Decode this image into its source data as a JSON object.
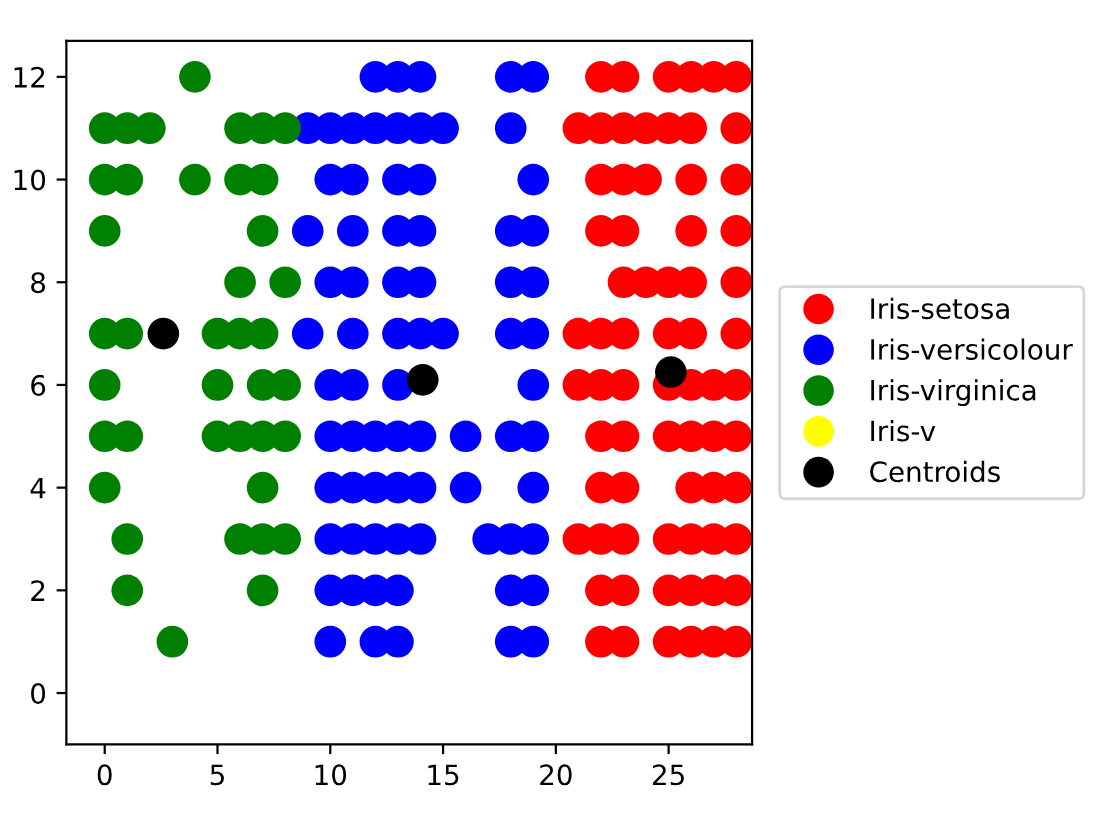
{
  "chart_data": {
    "type": "scatter",
    "xlim": [
      -1.7,
      28.7
    ],
    "ylim": [
      -1,
      12.7
    ],
    "xticks": [
      0,
      5,
      10,
      15,
      20,
      25
    ],
    "yticks": [
      0,
      2,
      4,
      6,
      8,
      10,
      12
    ],
    "grid": false,
    "legend": "right",
    "marker": "circle",
    "series": [
      {
        "name": "Iris-setosa",
        "color": "#ff0000",
        "x": [
          22,
          23,
          25,
          26,
          27,
          28,
          21,
          22,
          23,
          24,
          25,
          26,
          28,
          22,
          23,
          24,
          26,
          28,
          22,
          23,
          26,
          28,
          23,
          24,
          25,
          26,
          28,
          21,
          22,
          23,
          25,
          26,
          28,
          21,
          22,
          23,
          25,
          26,
          27,
          28,
          22,
          23,
          25,
          26,
          27,
          28,
          22,
          23,
          26,
          27,
          28,
          21,
          22,
          23,
          25,
          26,
          27,
          28,
          22,
          23,
          25,
          26,
          27,
          28,
          22,
          23,
          25,
          26,
          27,
          28
        ],
        "values": [
          12,
          12,
          12,
          12,
          12,
          12,
          11,
          11,
          11,
          11,
          11,
          11,
          11,
          10,
          10,
          10,
          10,
          10,
          9,
          9,
          9,
          9,
          8,
          8,
          8,
          8,
          8,
          7,
          7,
          7,
          7,
          7,
          7,
          6,
          6,
          6,
          6,
          6,
          6,
          6,
          5,
          5,
          5,
          5,
          5,
          5,
          4,
          4,
          4,
          4,
          4,
          3,
          3,
          3,
          3,
          3,
          3,
          3,
          2,
          2,
          2,
          2,
          2,
          2,
          1,
          1,
          1,
          1,
          1,
          1
        ]
      },
      {
        "name": "Iris-versicolour",
        "color": "#0000ff",
        "x": [
          12,
          13,
          14,
          18,
          19,
          9,
          10,
          11,
          12,
          13,
          14,
          15,
          18,
          10,
          11,
          13,
          14,
          19,
          9,
          11,
          13,
          14,
          18,
          19,
          10,
          11,
          13,
          14,
          18,
          19,
          9,
          11,
          13,
          14,
          15,
          18,
          19,
          10,
          11,
          13,
          19,
          10,
          11,
          12,
          13,
          14,
          16,
          18,
          19,
          10,
          11,
          12,
          13,
          14,
          16,
          19,
          10,
          11,
          12,
          13,
          14,
          17,
          18,
          19,
          10,
          11,
          12,
          13,
          18,
          19,
          10,
          12,
          13,
          18,
          19
        ],
        "values": [
          12,
          12,
          12,
          12,
          12,
          11,
          11,
          11,
          11,
          11,
          11,
          11,
          11,
          10,
          10,
          10,
          10,
          10,
          9,
          9,
          9,
          9,
          9,
          9,
          8,
          8,
          8,
          8,
          8,
          8,
          7,
          7,
          7,
          7,
          7,
          7,
          7,
          6,
          6,
          6,
          6,
          5,
          5,
          5,
          5,
          5,
          5,
          5,
          5,
          4,
          4,
          4,
          4,
          4,
          4,
          4,
          3,
          3,
          3,
          3,
          3,
          3,
          3,
          3,
          2,
          2,
          2,
          2,
          2,
          2,
          1,
          1,
          1,
          1,
          1
        ]
      },
      {
        "name": "Iris-virginica",
        "color": "#008000",
        "x": [
          4,
          0,
          1,
          2,
          6,
          7,
          8,
          0,
          1,
          4,
          6,
          7,
          0,
          7,
          6,
          8,
          0,
          1,
          5,
          6,
          7,
          0,
          5,
          7,
          8,
          0,
          1,
          5,
          6,
          7,
          8,
          0,
          7,
          1,
          6,
          7,
          8,
          1,
          7,
          3
        ],
        "values": [
          12,
          11,
          11,
          11,
          11,
          11,
          11,
          10,
          10,
          10,
          10,
          10,
          9,
          9,
          8,
          8,
          7,
          7,
          7,
          7,
          7,
          6,
          6,
          6,
          6,
          5,
          5,
          5,
          5,
          5,
          5,
          4,
          4,
          3,
          3,
          3,
          3,
          2,
          2,
          1
        ]
      },
      {
        "name": "Iris-v",
        "color": "#ffff00"
      },
      {
        "name": "Centroids",
        "color": "#000000",
        "x": [
          2.6,
          14.1,
          25.1
        ],
        "values": [
          7.0,
          6.1,
          6.25
        ]
      }
    ]
  }
}
